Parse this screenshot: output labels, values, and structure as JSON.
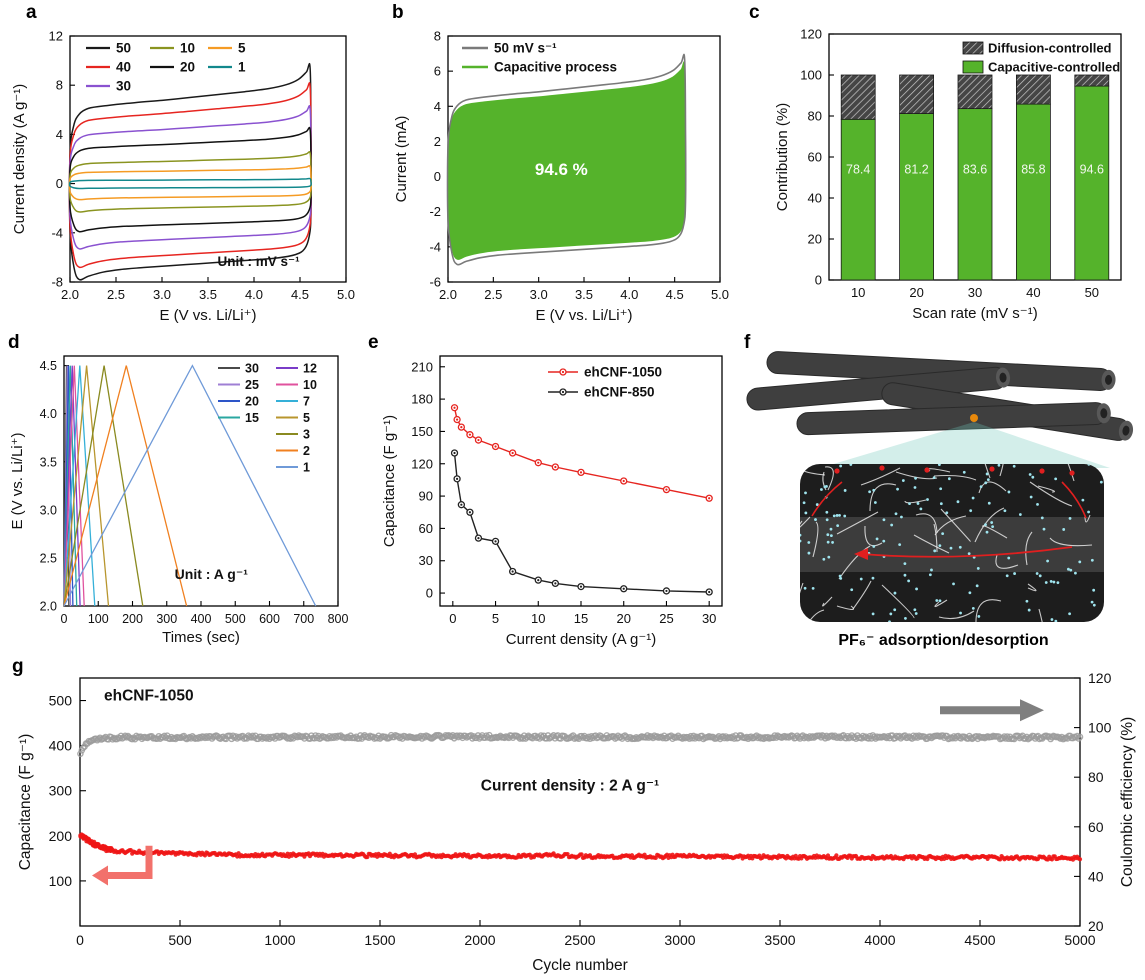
{
  "panel_tags": [
    "a",
    "b",
    "c",
    "d",
    "e",
    "f",
    "g"
  ],
  "chart_data": [
    {
      "id": "a",
      "type": "line",
      "kind": "cyclic-voltammetry",
      "xlabel": "E (V vs. Li/Li⁺)",
      "ylabel": "Current density (A g⁻¹)",
      "annotation": "Unit : mV s⁻¹",
      "xlim": [
        2.0,
        5.0
      ],
      "ylim": [
        -8,
        12
      ],
      "xticks": [
        2.0,
        2.5,
        3.0,
        3.5,
        4.0,
        4.5,
        5.0
      ],
      "yticks": [
        -8,
        -4,
        0,
        4,
        8,
        12
      ],
      "series": [
        {
          "name": "50",
          "color": "#1a1a1a",
          "peak_top": 9.4,
          "peak_bottom": 7.8
        },
        {
          "name": "40",
          "color": "#e62520",
          "peak_top": 7.9,
          "peak_bottom": 6.8
        },
        {
          "name": "30",
          "color": "#8a52d0",
          "peak_top": 6.1,
          "peak_bottom": 5.3
        },
        {
          "name": "20",
          "color": "#111111",
          "peak_top": 4.4,
          "peak_bottom": 3.9
        },
        {
          "name": "10",
          "color": "#8a9420",
          "peak_top": 2.5,
          "peak_bottom": 2.3
        },
        {
          "name": "5",
          "color": "#f59b24",
          "peak_top": 1.4,
          "peak_bottom": 1.3
        },
        {
          "name": "1",
          "color": "#12888c",
          "peak_top": 0.4,
          "peak_bottom": 0.4
        }
      ],
      "legend_cols": [
        [
          "50",
          "40",
          "30"
        ],
        [
          "10",
          "20"
        ],
        [
          "5",
          "1"
        ]
      ]
    },
    {
      "id": "b",
      "type": "area",
      "kind": "capacitive-contribution-cv",
      "xlabel": "E (V vs. Li/Li⁺)",
      "ylabel": "Current (mA)",
      "xlim": [
        2.0,
        5.0
      ],
      "ylim": [
        -6,
        8
      ],
      "xticks": [
        2.0,
        2.5,
        3.0,
        3.5,
        4.0,
        4.5,
        5.0
      ],
      "yticks": [
        -6,
        -4,
        -2,
        0,
        2,
        4,
        6,
        8
      ],
      "legend": [
        {
          "label": "50 mV s⁻¹",
          "color": "#7a7a7a"
        },
        {
          "label": "Capacitive process",
          "color": "#55b32b"
        }
      ],
      "capacitive_fraction_label": "94.6 %",
      "outer_peak_top": 6.7,
      "outer_peak_bottom": 5.0,
      "fill_color": "#55b32b",
      "outline_color": "#7a7a7a"
    },
    {
      "id": "c",
      "type": "bar",
      "stacked": true,
      "xlabel": "Scan rate (mV s⁻¹)",
      "ylabel": "Contribution (%)",
      "ylim": [
        0,
        120
      ],
      "yticks": [
        0,
        20,
        40,
        60,
        80,
        100,
        120
      ],
      "categories": [
        "10",
        "20",
        "30",
        "40",
        "50"
      ],
      "series": [
        {
          "name": "Capacitive-controlled",
          "color": "#55b32b",
          "values": [
            78.4,
            81.2,
            83.6,
            85.8,
            94.6
          ]
        },
        {
          "name": "Diffusion-controlled",
          "pattern": "diagonal-hatch",
          "color": "#454545",
          "values": [
            21.6,
            18.8,
            16.4,
            14.2,
            5.4
          ]
        }
      ],
      "bar_labels": [
        "78.4",
        "81.2",
        "83.6",
        "85.8",
        "94.6"
      ],
      "legend": [
        "Diffusion-controlled",
        "Capacitive-controlled"
      ]
    },
    {
      "id": "d",
      "type": "line",
      "kind": "galvanostatic-charge-discharge",
      "xlabel": "Times (sec)",
      "ylabel": "E (V vs. Li/Li⁺)",
      "annotation": "Unit : A g⁻¹",
      "xlim": [
        0,
        800
      ],
      "ylim": [
        2.0,
        4.6
      ],
      "xticks": [
        0,
        100,
        200,
        300,
        400,
        500,
        600,
        700,
        800
      ],
      "yticks": [
        2.0,
        2.5,
        3.0,
        3.5,
        4.0,
        4.5
      ],
      "v_min": 2.0,
      "v_max": 4.5,
      "series": [
        {
          "name": "30",
          "color": "#4a4a4a",
          "t_charge": 7.2,
          "t_total": 14
        },
        {
          "name": "25",
          "color": "#9f7fd4",
          "t_charge": 9.5,
          "t_total": 19
        },
        {
          "name": "20",
          "color": "#2d55c8",
          "t_charge": 13,
          "t_total": 26
        },
        {
          "name": "15",
          "color": "#2aa7a0",
          "t_charge": 18.5,
          "t_total": 37
        },
        {
          "name": "12",
          "color": "#7a3cc8",
          "t_charge": 24,
          "t_total": 47
        },
        {
          "name": "10",
          "color": "#e0529e",
          "t_charge": 30,
          "t_total": 59
        },
        {
          "name": "7",
          "color": "#35b0d8",
          "t_charge": 46,
          "t_total": 90
        },
        {
          "name": "5",
          "color": "#b8962e",
          "t_charge": 66,
          "t_total": 130
        },
        {
          "name": "3",
          "color": "#8a8a20",
          "t_charge": 117,
          "t_total": 230
        },
        {
          "name": "2",
          "color": "#f08020",
          "t_charge": 182,
          "t_total": 358
        },
        {
          "name": "1",
          "color": "#6f9ad8",
          "t_charge": 375,
          "t_total": 735
        }
      ],
      "legend_cols": [
        [
          "30",
          "25",
          "20",
          "15"
        ],
        [
          "12",
          "10",
          "7",
          "5",
          "3",
          "2",
          "1"
        ]
      ]
    },
    {
      "id": "e",
      "type": "scatter-line",
      "kind": "rate-capability",
      "xlabel": "Current density (A g⁻¹)",
      "ylabel": "Capacitance (F g⁻¹)",
      "xlim": [
        -1.5,
        31.5
      ],
      "ylim": [
        -12,
        220
      ],
      "xticks": [
        0,
        5,
        10,
        15,
        20,
        25,
        30
      ],
      "yticks": [
        0,
        30,
        60,
        90,
        120,
        150,
        180,
        210
      ],
      "series": [
        {
          "name": "ehCNF-1050",
          "color": "#e62520",
          "x": [
            0.2,
            0.5,
            1,
            2,
            3,
            5,
            7,
            10,
            12,
            15,
            20,
            25,
            30
          ],
          "y": [
            172,
            161,
            154,
            147,
            142,
            136,
            130,
            121,
            117,
            112,
            104,
            96,
            88
          ]
        },
        {
          "name": "ehCNF-850",
          "color": "#222222",
          "x": [
            0.2,
            0.5,
            1,
            2,
            3,
            5,
            7,
            10,
            12,
            15,
            20,
            25,
            30
          ],
          "y": [
            130,
            106,
            82,
            75,
            51,
            48,
            20,
            12,
            9,
            6,
            4,
            2,
            1
          ]
        }
      ]
    },
    {
      "id": "f",
      "type": "illustration",
      "caption": "PF₆⁻ adsorption/desorption"
    },
    {
      "id": "g",
      "type": "scatter",
      "kind": "cycling-stability",
      "sample_label": "ehCNF-1050",
      "annotation": "Current density : 2 A g⁻¹",
      "xlabel": "Cycle number",
      "ylabel_left": "Capacitance (F g⁻¹)",
      "ylabel_right": "Coulombic efficiency (%)",
      "xlim": [
        0,
        5000
      ],
      "xticks": [
        0,
        500,
        1000,
        1500,
        2000,
        2500,
        3000,
        3500,
        4000,
        4500,
        5000
      ],
      "ylim_left": [
        0,
        550
      ],
      "yticks_left": [
        100,
        200,
        300,
        400,
        500
      ],
      "ylim_right": [
        20,
        120
      ],
      "yticks_right": [
        20,
        40,
        60,
        80,
        100,
        120
      ],
      "capacitance_points": [
        [
          2,
          202
        ],
        [
          20,
          196
        ],
        [
          60,
          184
        ],
        [
          120,
          172
        ],
        [
          200,
          166
        ],
        [
          300,
          163
        ],
        [
          500,
          160
        ],
        [
          800,
          158
        ],
        [
          1200,
          157
        ],
        [
          1700,
          156
        ],
        [
          2250,
          155
        ],
        [
          2350,
          158
        ],
        [
          2500,
          155
        ],
        [
          3000,
          154
        ],
        [
          3600,
          153
        ],
        [
          4200,
          152
        ],
        [
          5000,
          151
        ]
      ],
      "efficiency_points": [
        [
          2,
          90
        ],
        [
          30,
          94
        ],
        [
          80,
          95.5
        ],
        [
          200,
          96
        ],
        [
          1000,
          96.2
        ],
        [
          2000,
          96.3
        ],
        [
          3000,
          96.1
        ],
        [
          4000,
          96.2
        ],
        [
          5000,
          96
        ]
      ],
      "series_colors": {
        "capacitance": "#ee1515",
        "efficiency": "#9b9b9b"
      }
    }
  ]
}
